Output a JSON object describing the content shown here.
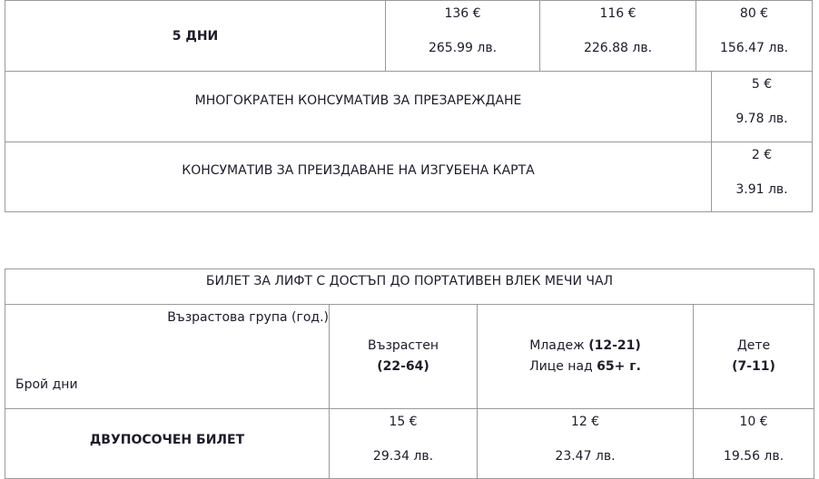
{
  "table1": {
    "row_5days": {
      "label": "5 ДНИ",
      "prices": [
        {
          "eur": "136 €",
          "bgn": "265.99 лв."
        },
        {
          "eur": "116 €",
          "bgn": "226.88 лв."
        },
        {
          "eur": "80 €",
          "bgn": "156.47 лв."
        }
      ]
    },
    "reusable": {
      "label": "МНОГОКРАТЕН КОНСУМАТИВ ЗА ПРЕЗАРЕЖДАНЕ",
      "eur": "5 €",
      "bgn": "9.78 лв."
    },
    "lost_card": {
      "label": "КОНСУМАТИВ ЗА ПРЕИЗДАВАНЕ НА ИЗГУБЕНА КАРТА",
      "eur": "2 €",
      "bgn": "3.91 лв."
    }
  },
  "table2": {
    "title": "БИЛЕТ ЗА ЛИФТ С ДОСТЪП ДО ПОРТАТИВЕН ВЛЕК МЕЧИ ЧАЛ",
    "age_group": "Възрастова група (год.)",
    "days": "Брой дни",
    "adult": {
      "label": "Възрастен",
      "range": "(22-64)"
    },
    "youth": {
      "label": "Младеж",
      "range": "(12-21)",
      "senior_prefix": "Лице над",
      "senior_age": "65+ г."
    },
    "child": {
      "label": "Дете",
      "range": "(7-11)"
    },
    "row": {
      "label": "ДВУПОСОЧЕН БИЛЕТ",
      "prices": [
        {
          "eur": "15 €",
          "bgn": "29.34 лв."
        },
        {
          "eur": "12 €",
          "bgn": "23.47 лв."
        },
        {
          "eur": "10 €",
          "bgn": "19.56 лв."
        }
      ]
    }
  }
}
